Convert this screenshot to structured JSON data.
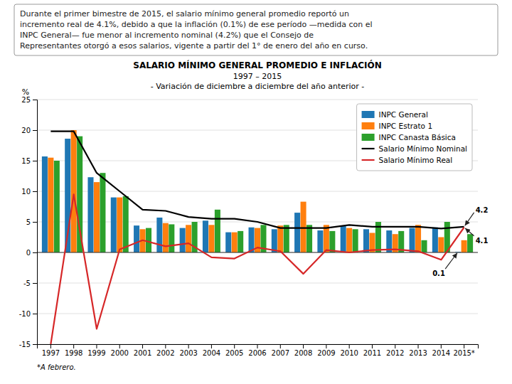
{
  "chart_data": {
    "type": "bar",
    "header": [
      "Durante el primer bimestre de 2015, el salario mínimo general promedio reportó un",
      "incremento real de 4.1%, debido a que la inflación (0.1%) de ese período —medida con el",
      "INPC General— fue menor al incremento nominal (4.2%) que el Consejo de",
      "Representantes otorgó a esos salarios, vigente a partir del 1° de enero del año en curso."
    ],
    "title": "SALARIO MÍNIMO GENERAL PROMEDIO E INFLACIÓN",
    "subtitle": [
      "1997 – 2015",
      "- Variación de diciembre a diciembre del año anterior -"
    ],
    "y_label": "%",
    "categories": [
      "1997",
      "1998",
      "1999",
      "2000",
      "2001",
      "2002",
      "2003",
      "2004",
      "2005",
      "2006",
      "2007",
      "2008",
      "2009",
      "2010",
      "2011",
      "2012",
      "2013",
      "2014",
      "2015*"
    ],
    "series": [
      {
        "name": "INPC General",
        "type": "bar",
        "color": "#1f77b4",
        "values": [
          15.7,
          18.6,
          12.3,
          9.0,
          4.4,
          5.7,
          4.0,
          5.2,
          3.3,
          4.1,
          3.8,
          6.5,
          3.6,
          4.4,
          3.8,
          3.6,
          4.0,
          4.1,
          0.1
        ]
      },
      {
        "name": "INPC Estrato 1",
        "type": "bar",
        "color": "#ff7f0e",
        "values": [
          15.5,
          20.0,
          11.5,
          9.0,
          3.8,
          4.8,
          4.5,
          4.5,
          3.3,
          4.0,
          4.4,
          8.3,
          4.5,
          4.0,
          3.2,
          3.0,
          4.5,
          2.5,
          2.0
        ]
      },
      {
        "name": "INPC Canasta Básica",
        "type": "bar",
        "color": "#2ca02c",
        "values": [
          15.0,
          19.0,
          13.0,
          9.2,
          4.0,
          4.6,
          5.0,
          7.0,
          3.5,
          4.5,
          4.5,
          4.5,
          3.5,
          3.8,
          5.0,
          3.5,
          2.0,
          5.0,
          3.0
        ]
      },
      {
        "name": "Salario Mínimo Nominal",
        "type": "line",
        "color": "#000000",
        "values": [
          19.8,
          19.8,
          13.0,
          10.0,
          7.0,
          6.8,
          5.8,
          5.5,
          5.5,
          5.0,
          4.0,
          4.0,
          4.0,
          4.5,
          4.2,
          4.2,
          4.2,
          3.9,
          4.2
        ]
      },
      {
        "name": "Salario Mínimo Real",
        "type": "line",
        "color": "#d62728",
        "values": [
          -15.0,
          9.5,
          -12.5,
          0.5,
          2.0,
          1.0,
          1.5,
          -0.8,
          -1.0,
          0.8,
          0.2,
          -3.5,
          0.4,
          0.0,
          0.4,
          0.5,
          0.2,
          -1.2,
          4.1
        ]
      }
    ],
    "ylim": [
      -15,
      25
    ],
    "yticks": [
      -15,
      -10,
      -5,
      0,
      5,
      10,
      15,
      20,
      25
    ],
    "grid": true,
    "legend": "upper right",
    "annotations": [
      {
        "text": "4.2",
        "series": "Salario Mínimo Nominal",
        "x": "2015*",
        "y": 4.2
      },
      {
        "text": "4.1",
        "series": "Salario Mínimo Real",
        "x": "2015*",
        "y": 4.1
      },
      {
        "text": "0.1",
        "series": "INPC General",
        "x": "2015*",
        "y": 0.1
      }
    ],
    "footnote": "*A febrero."
  }
}
